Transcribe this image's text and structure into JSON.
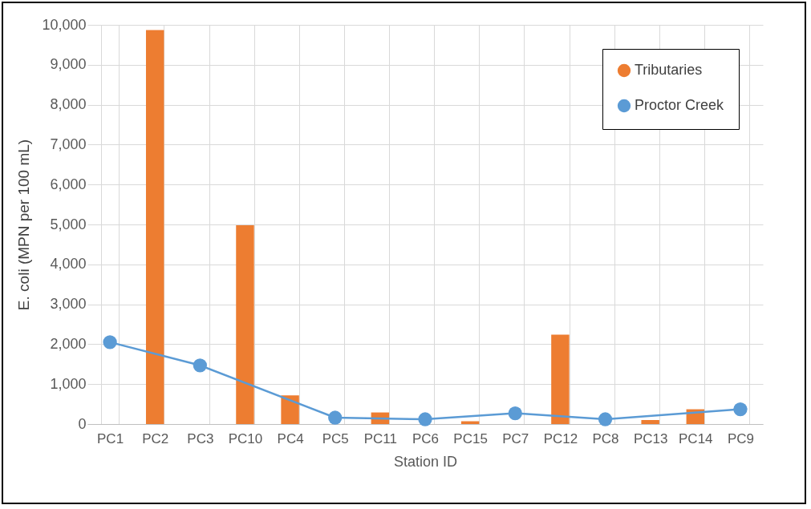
{
  "chart_data": {
    "type": "bar",
    "xlabel": "Station ID",
    "ylabel": "E. coli (MPN per 100 mL)",
    "categories": [
      "PC1",
      "PC2",
      "PC3",
      "PC10",
      "PC4",
      "PC5",
      "PC11",
      "PC6",
      "PC15",
      "PC7",
      "PC12",
      "PC8",
      "PC13",
      "PC14",
      "PC9"
    ],
    "series": [
      {
        "name": "Tributaries",
        "color": "#ed7d31",
        "values": [
          null,
          9870,
          null,
          4980,
          720,
          null,
          290,
          null,
          70,
          null,
          2240,
          null,
          100,
          370,
          null
        ]
      },
      {
        "name": "Proctor Creek",
        "type": "line",
        "color": "#5b9bd5",
        "marker": "circle",
        "values": [
          2050,
          null,
          1470,
          null,
          null,
          160,
          null,
          120,
          null,
          270,
          null,
          120,
          null,
          null,
          370
        ]
      }
    ],
    "ylim": [
      0,
      10000
    ],
    "yticks": [
      0,
      {
        "value": 1000,
        "label": "1,000"
      },
      {
        "value": 2000,
        "label": "2,000"
      },
      {
        "value": 3000,
        "label": "3,000"
      },
      {
        "value": 4000,
        "label": "4,000"
      },
      {
        "value": 5000,
        "label": "5,000"
      },
      {
        "value": 6000,
        "label": "6,000"
      },
      {
        "value": 7000,
        "label": "7,000"
      },
      {
        "value": 8000,
        "label": "8,000"
      },
      {
        "value": 9000,
        "label": "9,000"
      },
      {
        "value": 10000,
        "label": "10,000"
      }
    ],
    "grid": true,
    "legend": "top right"
  }
}
